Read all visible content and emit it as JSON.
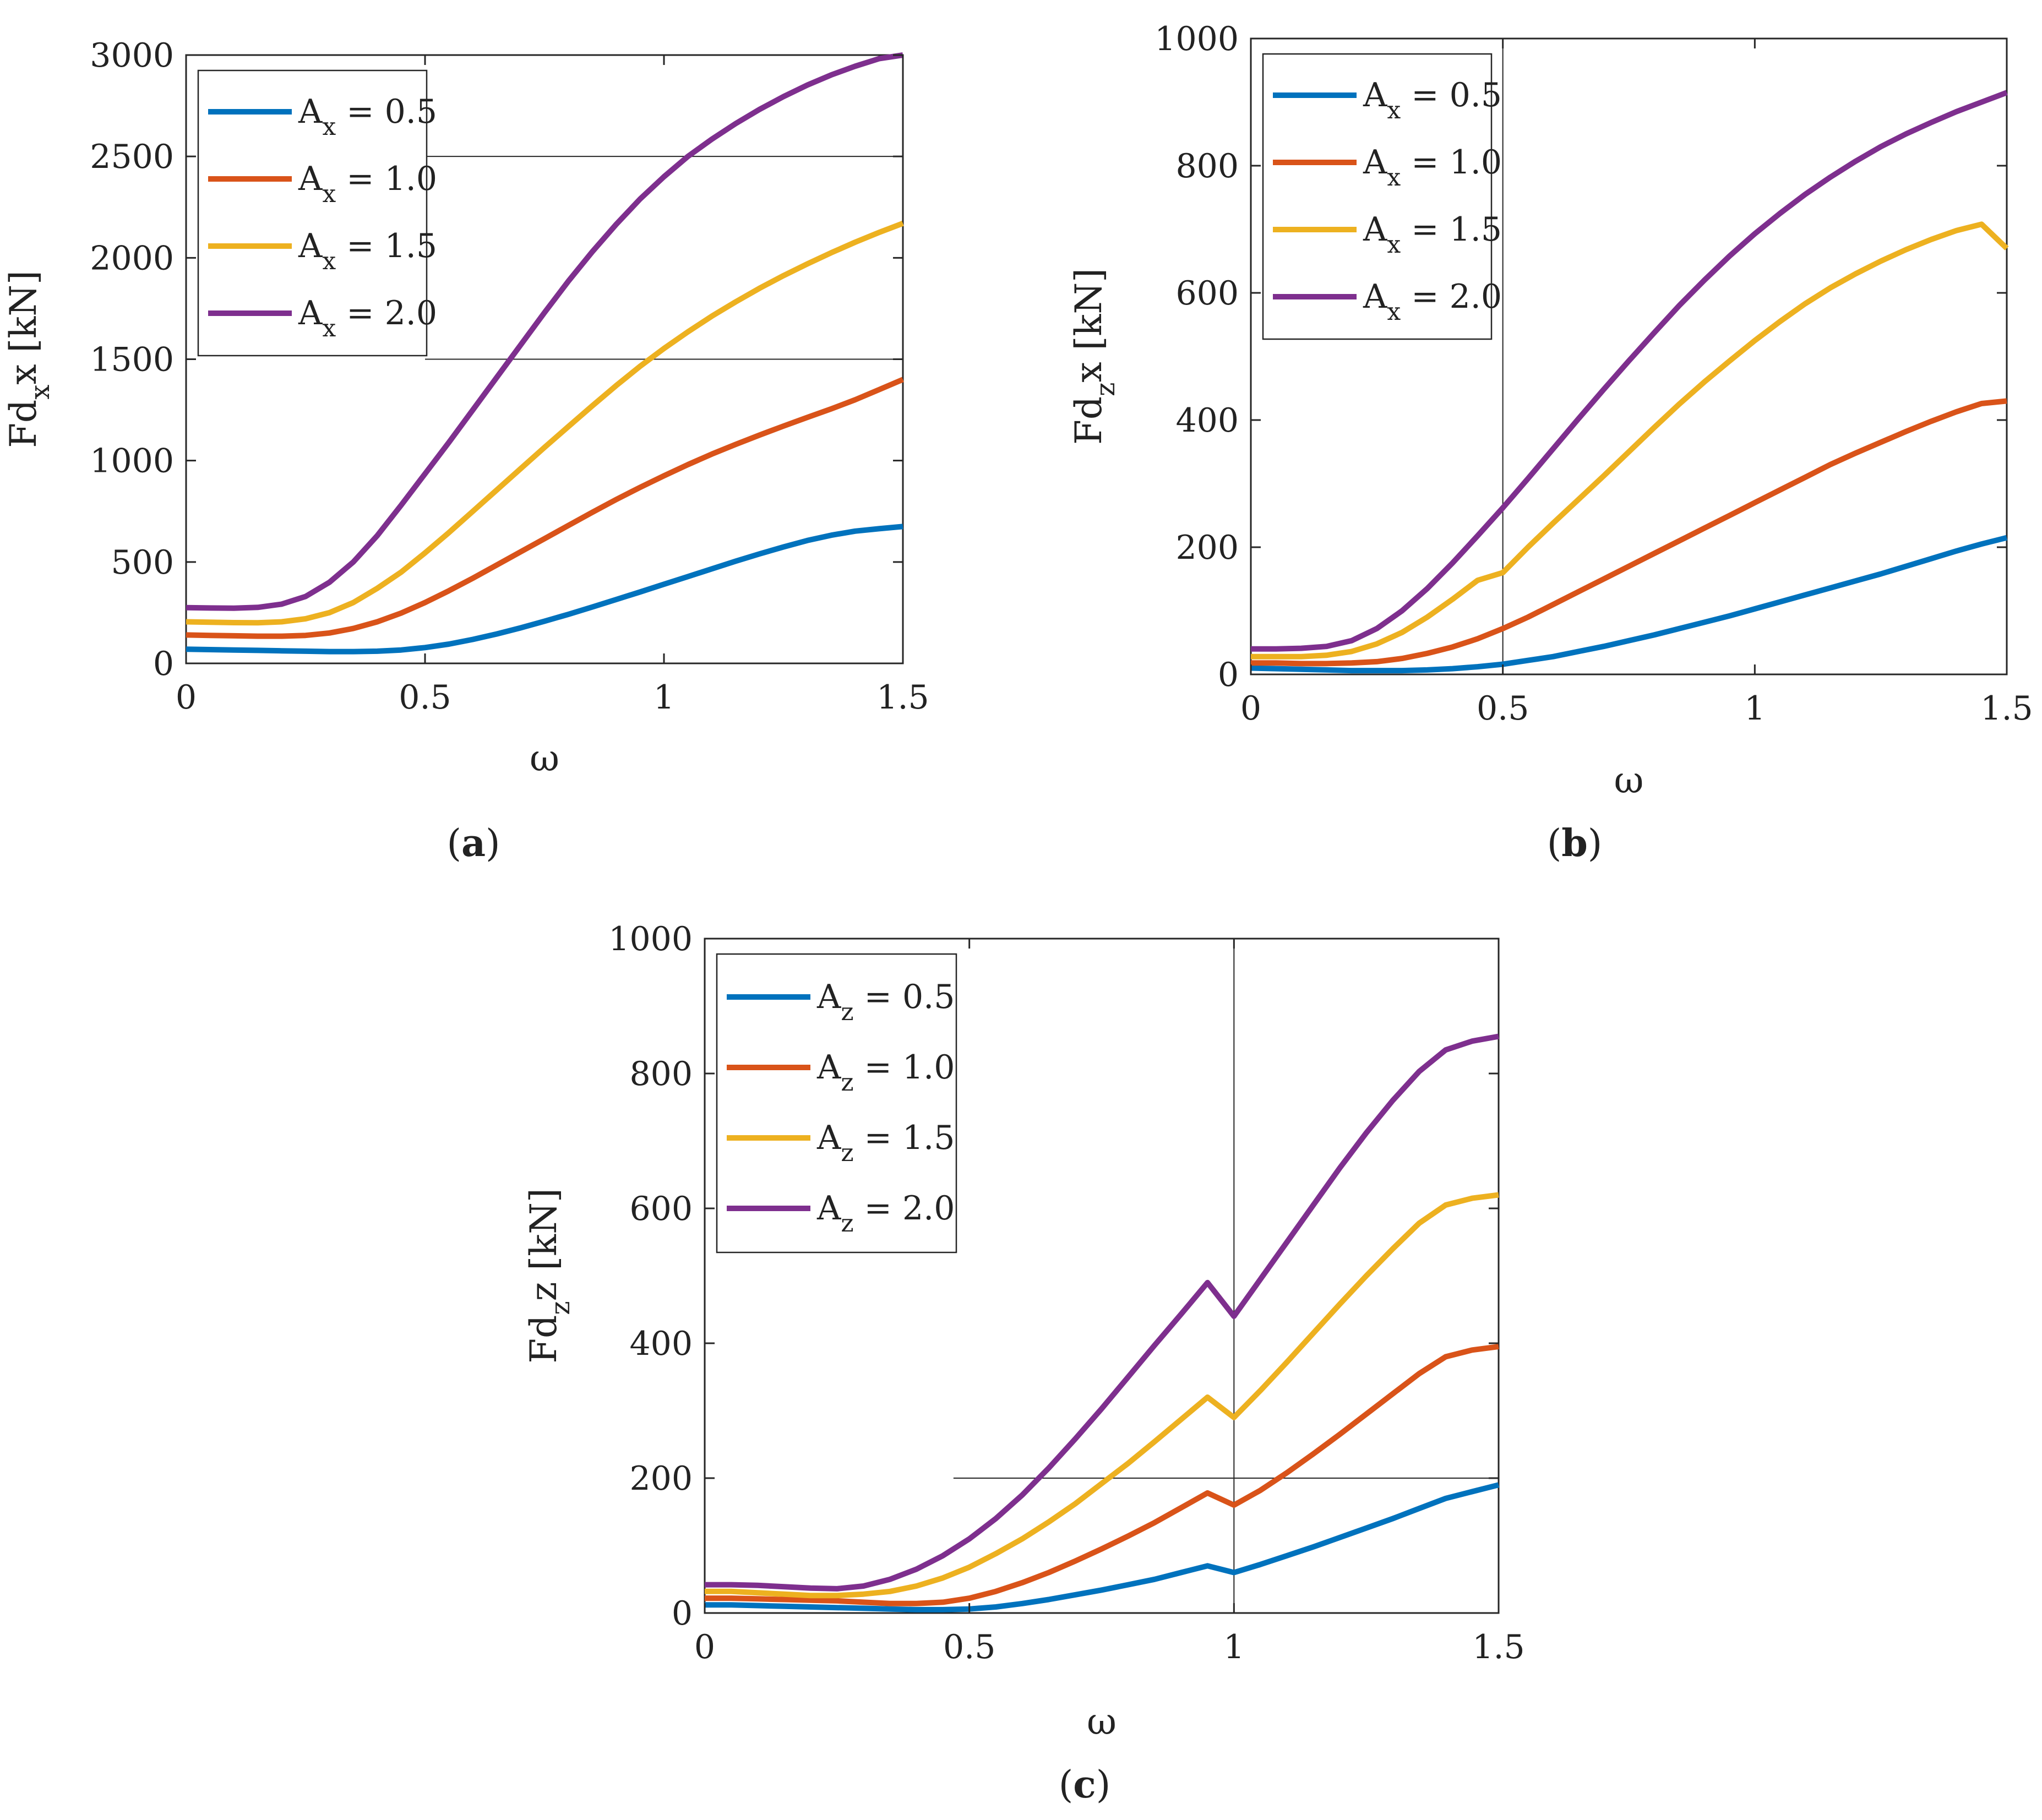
{
  "colors": {
    "series": [
      "#0072BD",
      "#D95319",
      "#EDB120",
      "#7E2F8E"
    ],
    "axis": "#262626",
    "refline": "#262626",
    "background": "#ffffff"
  },
  "chart_data": [
    {
      "id": "a",
      "type": "line",
      "caption": "a",
      "xlabel": "ω",
      "ylabel": {
        "base": "Fd",
        "sub": "x",
        "tail": "x",
        "unit": "[kN]"
      },
      "xlim": [
        0,
        1.5
      ],
      "ylim": [
        0,
        3000
      ],
      "xticks": [
        0,
        0.5,
        1,
        1.5
      ],
      "xtick_labels": [
        "0",
        "0.5",
        "1",
        "1.5"
      ],
      "yticks": [
        0,
        500,
        1000,
        1500,
        2000,
        2500,
        3000
      ],
      "ytick_labels": [
        "0",
        "500",
        "1000",
        "1500",
        "2000",
        "2500",
        "3000"
      ],
      "ref_lines": [
        {
          "orientation": "h",
          "value": 2500,
          "from": 0.5,
          "to": 1.5
        },
        {
          "orientation": "h",
          "value": 1500,
          "from": 0.5,
          "to": 1.5
        }
      ],
      "legend": {
        "position": "top-left",
        "label_base": "A",
        "label_sub": "x"
      },
      "x": [
        0,
        0.05,
        0.1,
        0.15,
        0.2,
        0.25,
        0.3,
        0.35,
        0.4,
        0.45,
        0.5,
        0.55,
        0.6,
        0.65,
        0.7,
        0.75,
        0.8,
        0.85,
        0.9,
        0.95,
        1.0,
        1.05,
        1.1,
        1.15,
        1.2,
        1.25,
        1.3,
        1.35,
        1.4,
        1.45,
        1.5
      ],
      "series": [
        {
          "name": "= 0.5",
          "values": [
            70,
            68,
            66,
            64,
            62,
            60,
            58,
            58,
            60,
            66,
            78,
            95,
            118,
            145,
            175,
            208,
            242,
            278,
            315,
            352,
            390,
            428,
            466,
            504,
            540,
            574,
            606,
            632,
            652,
            664,
            675
          ]
        },
        {
          "name": "= 1.0",
          "values": [
            140,
            138,
            136,
            134,
            134,
            138,
            150,
            172,
            205,
            248,
            300,
            358,
            420,
            485,
            550,
            615,
            680,
            745,
            808,
            868,
            925,
            980,
            1032,
            1080,
            1126,
            1170,
            1213,
            1255,
            1300,
            1350,
            1400
          ]
        },
        {
          "name": "= 1.5",
          "values": [
            205,
            203,
            201,
            200,
            205,
            220,
            250,
            300,
            370,
            450,
            545,
            645,
            750,
            855,
            960,
            1065,
            1168,
            1270,
            1370,
            1465,
            1553,
            1635,
            1712,
            1783,
            1850,
            1912,
            1970,
            2025,
            2077,
            2125,
            2170
          ]
        },
        {
          "name": "= 2.0",
          "values": [
            275,
            273,
            272,
            276,
            292,
            330,
            400,
            500,
            630,
            780,
            935,
            1090,
            1250,
            1410,
            1570,
            1730,
            1885,
            2030,
            2165,
            2290,
            2400,
            2500,
            2585,
            2662,
            2732,
            2795,
            2852,
            2902,
            2945,
            2982,
            3000
          ]
        }
      ]
    },
    {
      "id": "b",
      "type": "line",
      "caption": "b",
      "xlabel": "ω",
      "ylabel": {
        "base": "Fd",
        "sub": "z",
        "tail": "x",
        "unit": "[kN]"
      },
      "xlim": [
        0,
        1.5
      ],
      "ylim": [
        0,
        1000
      ],
      "xticks": [
        0,
        0.5,
        1,
        1.5
      ],
      "xtick_labels": [
        "0",
        "0.5",
        "1",
        "1.5"
      ],
      "yticks": [
        0,
        200,
        400,
        600,
        800,
        1000
      ],
      "ytick_labels": [
        "0",
        "200",
        "400",
        "600",
        "800",
        "1000"
      ],
      "ref_lines": [
        {
          "orientation": "v",
          "value": 0.5,
          "from": 0,
          "to": 1000
        }
      ],
      "legend": {
        "position": "top-left",
        "label_base": "A",
        "label_sub": "x"
      },
      "x": [
        0,
        0.05,
        0.1,
        0.15,
        0.2,
        0.25,
        0.3,
        0.35,
        0.4,
        0.45,
        0.5,
        0.55,
        0.6,
        0.65,
        0.7,
        0.75,
        0.8,
        0.85,
        0.9,
        0.95,
        1.0,
        1.05,
        1.1,
        1.15,
        1.2,
        1.25,
        1.3,
        1.35,
        1.4,
        1.45,
        1.5
      ],
      "series": [
        {
          "name": "= 0.5",
          "values": [
            10,
            9,
            8,
            7,
            6,
            6,
            6,
            7,
            9,
            12,
            16,
            22,
            28,
            36,
            44,
            53,
            62,
            72,
            82,
            92,
            103,
            114,
            125,
            136,
            147,
            158,
            170,
            182,
            194,
            205,
            215
          ]
        },
        {
          "name": "= 1.0",
          "values": [
            18,
            18,
            17,
            17,
            18,
            20,
            25,
            33,
            43,
            56,
            72,
            90,
            110,
            130,
            150,
            170,
            190,
            210,
            230,
            250,
            270,
            290,
            310,
            330,
            348,
            365,
            382,
            398,
            413,
            426,
            430
          ]
        },
        {
          "name": "= 1.5",
          "values": [
            28,
            28,
            28,
            30,
            36,
            48,
            66,
            90,
            118,
            148,
            160,
            200,
            238,
            275,
            312,
            350,
            388,
            425,
            460,
            493,
            525,
            555,
            583,
            608,
            630,
            650,
            668,
            684,
            698,
            708,
            670
          ]
        },
        {
          "name": "= 2.0",
          "values": [
            40,
            40,
            41,
            44,
            53,
            72,
            100,
            135,
            175,
            218,
            262,
            308,
            355,
            402,
            448,
            493,
            537,
            580,
            620,
            658,
            693,
            725,
            755,
            782,
            807,
            830,
            850,
            868,
            885,
            900,
            915
          ]
        }
      ]
    },
    {
      "id": "c",
      "type": "line",
      "caption": "c",
      "xlabel": "ω",
      "ylabel": {
        "base": "Fd",
        "sub": "z",
        "tail": "z",
        "unit": "[kN]"
      },
      "xlim": [
        0,
        1.5
      ],
      "ylim": [
        0,
        1000
      ],
      "xticks": [
        0,
        0.5,
        1,
        1.5
      ],
      "xtick_labels": [
        "0",
        "0.5",
        "1",
        "1.5"
      ],
      "yticks": [
        0,
        200,
        400,
        600,
        800,
        1000
      ],
      "ytick_labels": [
        "0",
        "200",
        "400",
        "600",
        "800",
        "1000"
      ],
      "ref_lines": [
        {
          "orientation": "v",
          "value": 1.0,
          "from": 0,
          "to": 1000
        },
        {
          "orientation": "h",
          "value": 200,
          "from": 0.47,
          "to": 1.5
        }
      ],
      "legend": {
        "position": "top-left",
        "label_base": "A",
        "label_sub": "z"
      },
      "x": [
        0,
        0.05,
        0.1,
        0.15,
        0.2,
        0.25,
        0.3,
        0.35,
        0.4,
        0.45,
        0.5,
        0.55,
        0.6,
        0.65,
        0.7,
        0.75,
        0.8,
        0.85,
        0.9,
        0.95,
        1.0,
        1.05,
        1.1,
        1.15,
        1.2,
        1.25,
        1.3,
        1.35,
        1.4,
        1.45,
        1.5
      ],
      "series": [
        {
          "name": "= 0.5",
          "values": [
            12,
            12,
            11,
            10,
            9,
            8,
            7,
            6,
            5,
            5,
            6,
            9,
            14,
            20,
            27,
            34,
            42,
            50,
            60,
            70,
            60,
            72,
            85,
            98,
            112,
            126,
            140,
            155,
            170,
            180,
            190
          ]
        },
        {
          "name": "= 1.0",
          "values": [
            22,
            22,
            21,
            20,
            19,
            18,
            16,
            14,
            14,
            16,
            22,
            32,
            45,
            60,
            77,
            95,
            114,
            134,
            156,
            178,
            160,
            182,
            208,
            236,
            265,
            295,
            325,
            355,
            380,
            390,
            395
          ]
        },
        {
          "name": "= 1.5",
          "values": [
            32,
            32,
            30,
            28,
            26,
            26,
            28,
            32,
            40,
            52,
            68,
            88,
            110,
            135,
            162,
            192,
            222,
            254,
            287,
            320,
            290,
            330,
            372,
            415,
            458,
            500,
            540,
            578,
            605,
            615,
            620
          ]
        },
        {
          "name": "= 2.0",
          "values": [
            42,
            42,
            41,
            39,
            37,
            36,
            40,
            50,
            65,
            85,
            110,
            140,
            175,
            215,
            258,
            303,
            350,
            397,
            443,
            490,
            440,
            495,
            550,
            605,
            660,
            712,
            760,
            803,
            835,
            848,
            855
          ]
        }
      ]
    }
  ]
}
